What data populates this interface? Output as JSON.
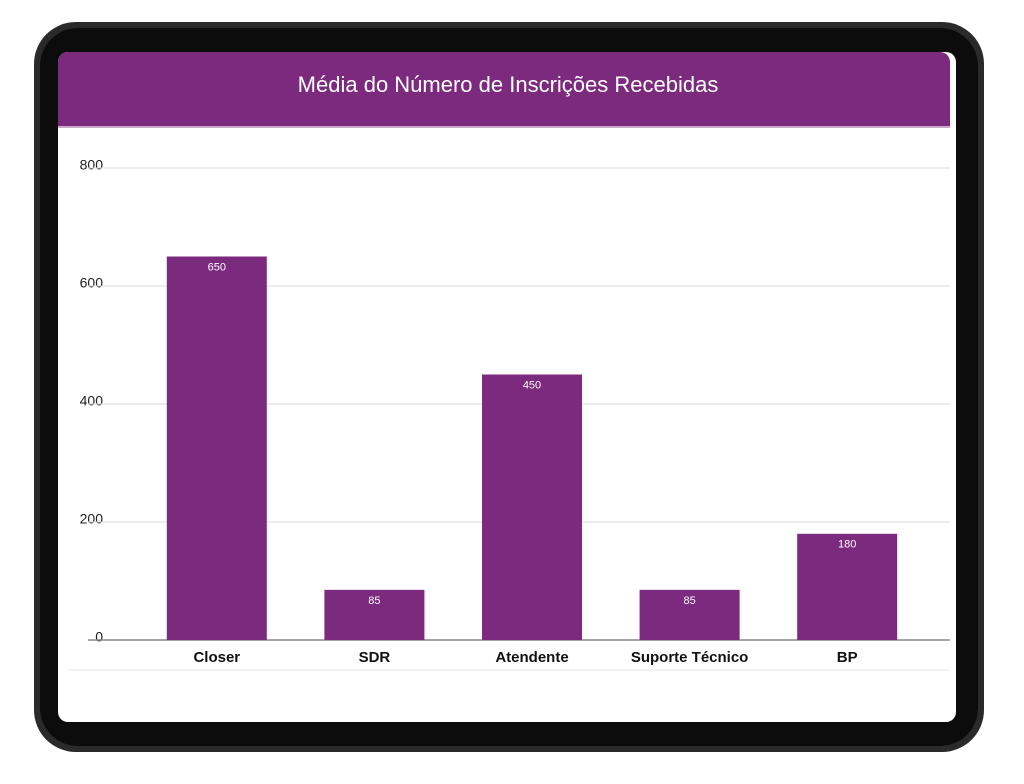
{
  "chart_data": {
    "type": "bar",
    "title": "Média do Número de Inscrições Recebidas",
    "categories": [
      "Closer",
      "SDR",
      "Atendente",
      "Suporte Técnico",
      "BP"
    ],
    "values": [
      650,
      85,
      450,
      85,
      180
    ],
    "color": "#7c2a7d",
    "ylim": [
      0,
      800
    ],
    "yticks": [
      0,
      200,
      400,
      600,
      800
    ],
    "grid": true
  }
}
